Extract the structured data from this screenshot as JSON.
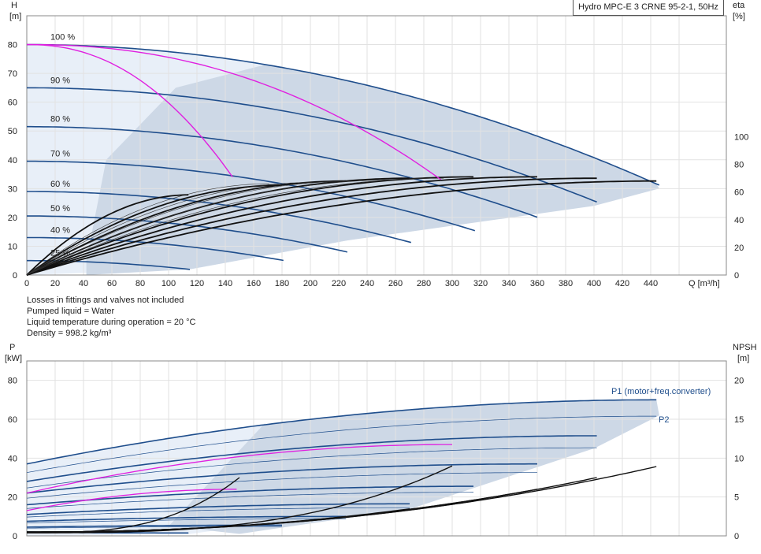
{
  "chart_data": [
    {
      "type": "line",
      "panel": "head-efficiency",
      "title": "Hydro MPC-E 3 CRNE 95-2-1, 50Hz",
      "ylabel": [
        "H",
        "[m]"
      ],
      "ylabel_right": [
        "eta",
        "[%]"
      ],
      "xlabel": "Q [m³/h]",
      "xlim": [
        0,
        460
      ],
      "ylim": [
        0,
        90
      ],
      "x_ticks": [
        "0",
        "20",
        "40",
        "60",
        "80",
        "100",
        "120",
        "140",
        "160",
        "180",
        "200",
        "220",
        "240",
        "260",
        "280",
        "300",
        "320",
        "340",
        "360",
        "380",
        "400",
        "420",
        "440"
      ],
      "y_ticks": [
        "0",
        "10",
        "20",
        "30",
        "40",
        "50",
        "60",
        "70",
        "80"
      ],
      "y_ticks_right": [
        "0",
        "20",
        "40",
        "60",
        "80",
        "100"
      ],
      "y_right_range": [
        0,
        100
      ],
      "grid": true,
      "speed_labels": [
        {
          "text": "100 %",
          "h": 80
        },
        {
          "text": "90 %",
          "h": 65
        },
        {
          "text": "80 %",
          "h": 51.5
        },
        {
          "text": "70 %",
          "h": 39.5
        },
        {
          "text": "60 %",
          "h": 29
        },
        {
          "text": "50 %",
          "h": 20.5
        },
        {
          "text": "40 %",
          "h": 13
        },
        {
          "text": "25 %",
          "h": 5
        }
      ],
      "series": [
        {
          "speed": 1.0,
          "qmax": 446,
          "shutoff": 80
        },
        {
          "speed": 0.9,
          "qmax": 402,
          "shutoff": 65
        },
        {
          "speed": 0.8,
          "qmax": 360,
          "shutoff": 51.5
        },
        {
          "speed": 0.7,
          "qmax": 316,
          "shutoff": 39.5
        },
        {
          "speed": 0.6,
          "qmax": 271,
          "shutoff": 29
        },
        {
          "speed": 0.5,
          "qmax": 226,
          "shutoff": 20.5
        },
        {
          "speed": 0.4,
          "qmax": 181,
          "shutoff": 13
        },
        {
          "speed": 0.25,
          "qmax": 115,
          "shutoff": 5
        }
      ],
      "efficiency_curves": [
        {
          "qmax": 446,
          "eta_max": 68
        },
        {
          "qmax": 402,
          "eta_max": 70
        },
        {
          "qmax": 360,
          "eta_max": 71
        },
        {
          "qmax": 316,
          "eta_max": 71
        },
        {
          "qmax": 271,
          "eta_max": 70
        },
        {
          "qmax": 226,
          "eta_max": 68
        },
        {
          "qmax": 181,
          "eta_max": 65
        },
        {
          "qmax": 115,
          "eta_max": 58
        }
      ],
      "one_pump_limit": {
        "q_end": 148,
        "h_end": 32
      },
      "two_pump_limit": {
        "q_end": 298,
        "h_end": 31
      },
      "colors": {
        "main": "#1f4e8c",
        "area": "#cdd8e6",
        "area_light": "#e8eff8",
        "magenta": "#e020e0",
        "eta": "#111111"
      }
    },
    {
      "type": "line",
      "panel": "power-npsh",
      "ylabel": [
        "P",
        "[kW]"
      ],
      "ylabel_right": [
        "NPSH",
        "[m]"
      ],
      "ylim": [
        0,
        90
      ],
      "y_ticks": [
        "0",
        "20",
        "40",
        "60",
        "80"
      ],
      "y_ticks_right": [
        "0",
        "5",
        "10",
        "15",
        "20"
      ],
      "y_right_range": [
        0,
        22.5
      ],
      "series_labels": [
        "P1 (motor+freq.converter)",
        "P2"
      ],
      "p1_curves": [
        {
          "p0": 37,
          "qmax": 446,
          "pmax": 70
        },
        {
          "p0": 28,
          "qmax": 402,
          "pmax": 51.5
        },
        {
          "p0": 22,
          "qmax": 360,
          "pmax": 37
        },
        {
          "p0": 16,
          "qmax": 316,
          "pmax": 25.5
        },
        {
          "p0": 11,
          "qmax": 271,
          "pmax": 16.5
        },
        {
          "p0": 7.5,
          "qmax": 226,
          "pmax": 10
        },
        {
          "p0": 4.5,
          "qmax": 181,
          "pmax": 5.5
        },
        {
          "p0": 2,
          "qmax": 115,
          "pmax": 1.5
        }
      ],
      "npsh_curves": [
        {
          "qmax": 446,
          "npsh_max": 9
        },
        {
          "qmax": 402,
          "npsh_max": 7.5
        },
        {
          "qmax": 360,
          "npsh_max": 6
        },
        {
          "qmax": 316,
          "npsh_max": 4.5
        },
        {
          "qmax": 271,
          "npsh_max": 3.5
        },
        {
          "qmax": 226,
          "npsh_max": 2.5
        }
      ]
    }
  ],
  "notes": [
    "Losses in fittings and valves not included",
    "Pumped liquid = Water",
    "Liquid temperature during operation = 20 °C",
    "Density = 998.2 kg/m³"
  ]
}
